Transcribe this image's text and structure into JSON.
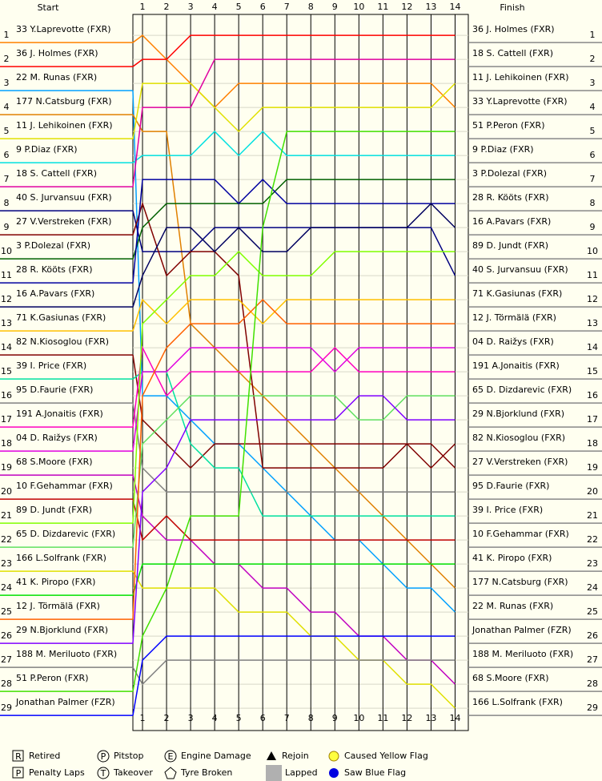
{
  "chart_data": {
    "type": "lap-chart",
    "start_label": "Start",
    "finish_label": "Finish",
    "xlim": [
      0.6,
      14.55
    ],
    "xticks": [
      1,
      2,
      3,
      4,
      5,
      6,
      7,
      8,
      9,
      10,
      11,
      12,
      13,
      14
    ],
    "ylim": [
      0.13,
      29.93
    ],
    "yticks": [
      1,
      2,
      3,
      4,
      5,
      6,
      7,
      8,
      9,
      10,
      11,
      12,
      13,
      14,
      15,
      16,
      17,
      18,
      19,
      20,
      21,
      22,
      23,
      24,
      25,
      26,
      27,
      28,
      29
    ],
    "series": [
      {
        "name": "33 Y.Laprevotte (FXR)",
        "color": "#ff8000",
        "values": [
          1,
          2,
          3,
          4,
          3,
          3,
          3,
          3,
          3,
          3,
          3,
          3,
          3,
          4
        ]
      },
      {
        "name": "36 J. Holmes (FXR)",
        "color": "#ff0000",
        "values": [
          2,
          2,
          1,
          1,
          1,
          1,
          1,
          1,
          1,
          1,
          1,
          1,
          1,
          1
        ]
      },
      {
        "name": "22 M. Runas (FXR)",
        "color": "#00a0ff",
        "values": [
          16,
          16,
          17,
          18,
          18,
          19,
          20,
          21,
          22,
          22,
          23,
          24,
          24,
          25
        ]
      },
      {
        "name": "177 N.Catsburg (FXR)",
        "color": "#e08000",
        "values": [
          5,
          5,
          13,
          14,
          15,
          16,
          17,
          18,
          19,
          20,
          21,
          22,
          23,
          24
        ]
      },
      {
        "name": "11 J. Lehikoinen (FXR)",
        "color": "#e0e000",
        "values": [
          3,
          3,
          3,
          4,
          5,
          4,
          4,
          4,
          4,
          4,
          4,
          4,
          4,
          3
        ]
      },
      {
        "name": "9 P.Diaz (FXR)",
        "color": "#00e0e0",
        "values": [
          6,
          6,
          6,
          5,
          6,
          5,
          6,
          6,
          6,
          6,
          6,
          6,
          6,
          6
        ]
      },
      {
        "name": "18 S. Cattell (FXR)",
        "color": "#e000a0",
        "values": [
          4,
          4,
          4,
          2,
          2,
          2,
          2,
          2,
          2,
          2,
          2,
          2,
          2,
          2
        ]
      },
      {
        "name": "40 S. Jurvansuu (FXR)",
        "color": "#000080",
        "values": [
          10,
          10,
          10,
          9,
          9,
          9,
          9,
          9,
          9,
          9,
          9,
          9,
          9,
          11
        ]
      },
      {
        "name": "27 V.Verstreken (FXR)",
        "color": "#800000",
        "values": [
          8,
          11,
          10,
          10,
          11,
          19,
          19,
          19,
          19,
          19,
          19,
          18,
          18,
          19
        ]
      },
      {
        "name": "3 P.Dolezal (FXR)",
        "color": "#006000",
        "values": [
          9,
          8,
          8,
          8,
          8,
          8,
          7,
          7,
          7,
          7,
          7,
          7,
          7,
          7
        ]
      },
      {
        "name": "28 R. Kööts (FXR)",
        "color": "#0000a0",
        "values": [
          7,
          7,
          7,
          7,
          8,
          7,
          8,
          8,
          8,
          8,
          8,
          8,
          8,
          8
        ]
      },
      {
        "name": "16 A.Pavars (FXR)",
        "color": "#000060",
        "values": [
          11,
          9,
          9,
          10,
          9,
          10,
          10,
          9,
          9,
          9,
          9,
          9,
          8,
          9
        ]
      },
      {
        "name": "71 K.Gasiunas (FXR)",
        "color": "#ffc000",
        "values": [
          12,
          13,
          12,
          12,
          12,
          13,
          12,
          12,
          12,
          12,
          12,
          12,
          12,
          12
        ]
      },
      {
        "name": "82 N.Kiosoglou (FXR)",
        "color": "#800000",
        "values": [
          17,
          18,
          19,
          18,
          18,
          18,
          18,
          18,
          18,
          18,
          18,
          18,
          19,
          18
        ]
      },
      {
        "name": "39 I. Price (FXR)",
        "color": "#00e0a0",
        "values": [
          15,
          15,
          18,
          19,
          19,
          21,
          21,
          21,
          21,
          21,
          21,
          21,
          21,
          21
        ]
      },
      {
        "name": "95 D.Faurie (FXR)",
        "color": "#808080",
        "values": [
          19,
          20,
          20,
          20,
          20,
          20,
          20,
          20,
          20,
          20,
          20,
          20,
          20,
          20
        ]
      },
      {
        "name": "191 A.Jonaitis (FXR)",
        "color": "#ff00c0",
        "values": [
          14,
          16,
          15,
          15,
          15,
          15,
          15,
          15,
          14,
          15,
          15,
          15,
          15,
          15
        ]
      },
      {
        "name": "04 D. Raižys (FXR)",
        "color": "#e000e0",
        "values": [
          15,
          15,
          14,
          14,
          14,
          14,
          14,
          14,
          15,
          14,
          14,
          14,
          14,
          14
        ]
      },
      {
        "name": "68 S.Moore (FXR)",
        "color": "#c000c0",
        "values": [
          21,
          22,
          22,
          23,
          23,
          24,
          24,
          25,
          25,
          26,
          26,
          27,
          27,
          28
        ]
      },
      {
        "name": "10 F.Gehammar (FXR)",
        "color": "#c00000",
        "values": [
          22,
          21,
          22,
          22,
          22,
          22,
          22,
          22,
          22,
          22,
          22,
          22,
          22,
          22
        ]
      },
      {
        "name": "89 D. Jundt (FXR)",
        "color": "#80ff00",
        "values": [
          13,
          12,
          11,
          11,
          10,
          11,
          11,
          11,
          10,
          10,
          10,
          10,
          10,
          10
        ]
      },
      {
        "name": "65 D. Dizdarevic (FXR)",
        "color": "#60e060",
        "values": [
          18,
          17,
          16,
          16,
          16,
          16,
          16,
          16,
          16,
          17,
          17,
          16,
          16,
          16
        ]
      },
      {
        "name": "166 L.Solfrank (FXR)",
        "color": "#e0e000",
        "values": [
          24,
          24,
          24,
          24,
          25,
          25,
          25,
          26,
          26,
          27,
          27,
          28,
          28,
          29
        ]
      },
      {
        "name": "41 K. Piropo (FXR)",
        "color": "#00e000",
        "values": [
          23,
          23,
          23,
          23,
          23,
          23,
          23,
          23,
          23,
          23,
          23,
          23,
          23,
          23
        ]
      },
      {
        "name": "12 J. Törmälä (FXR)",
        "color": "#ff6000",
        "values": [
          16,
          14,
          13,
          13,
          13,
          12,
          13,
          13,
          13,
          13,
          13,
          13,
          13,
          13
        ]
      },
      {
        "name": "29 N.Bjorklund (FXR)",
        "color": "#8000ff",
        "values": [
          20,
          19,
          17,
          17,
          17,
          17,
          17,
          17,
          17,
          16,
          16,
          17,
          17,
          17
        ]
      },
      {
        "name": "188 M. Meriluoto (FXR)",
        "color": "#808080",
        "values": [
          28,
          27,
          27,
          27,
          27,
          27,
          27,
          27,
          27,
          27,
          27,
          27,
          27,
          27
        ]
      },
      {
        "name": "51 P.Peron (FXR)",
        "color": "#40e000",
        "values": [
          26,
          24,
          21,
          21,
          21,
          9,
          5,
          5,
          5,
          5,
          5,
          5,
          5,
          5
        ]
      },
      {
        "name": "Jonathan Palmer (FZR)",
        "color": "#0000ff",
        "values": [
          27,
          26,
          26,
          26,
          26,
          26,
          26,
          26,
          26,
          26,
          26,
          26,
          26,
          26
        ]
      }
    ],
    "finish_order": [
      "36 J. Holmes (FXR)",
      "18 S. Cattell (FXR)",
      "11 J. Lehikoinen (FXR)",
      "33 Y.Laprevotte (FXR)",
      "51 P.Peron (FXR)",
      "9 P.Diaz (FXR)",
      "3 P.Dolezal (FXR)",
      "28 R. Kööts (FXR)",
      "16 A.Pavars (FXR)",
      "89 D. Jundt (FXR)",
      "40 S. Jurvansuu (FXR)",
      "71 K.Gasiunas (FXR)",
      "12 J. Törmälä (FXR)",
      "04 D. Raižys (FXR)",
      "191 A.Jonaitis (FXR)",
      "65 D. Dizdarevic (FXR)",
      "29 N.Bjorklund (FXR)",
      "82 N.Kiosoglou (FXR)",
      "27 V.Verstreken (FXR)",
      "95 D.Faurie (FXR)",
      "39 I. Price (FXR)",
      "10 F.Gehammar (FXR)",
      "41 K. Piropo (FXR)",
      "177 N.Catsburg (FXR)",
      "22 M. Runas (FXR)",
      "Jonathan Palmer (FZR)",
      "188 M. Meriluoto (FXR)",
      "68 S.Moore (FXR)",
      "166 L.Solfrank (FXR)"
    ],
    "legend": [
      {
        "symbol": "R",
        "label": "Retired"
      },
      {
        "symbol": "P",
        "label": "Penalty Laps"
      },
      {
        "symbol": "P",
        "label": "Pitstop"
      },
      {
        "symbol": "T",
        "label": "Takeover"
      },
      {
        "symbol": "E",
        "label": "Engine Damage"
      },
      {
        "label": "Tyre Broken"
      },
      {
        "label": "Rejoin"
      },
      {
        "label": "Lapped"
      },
      {
        "label": "Caused Yellow Flag"
      },
      {
        "label": "Saw Blue Flag"
      }
    ]
  }
}
